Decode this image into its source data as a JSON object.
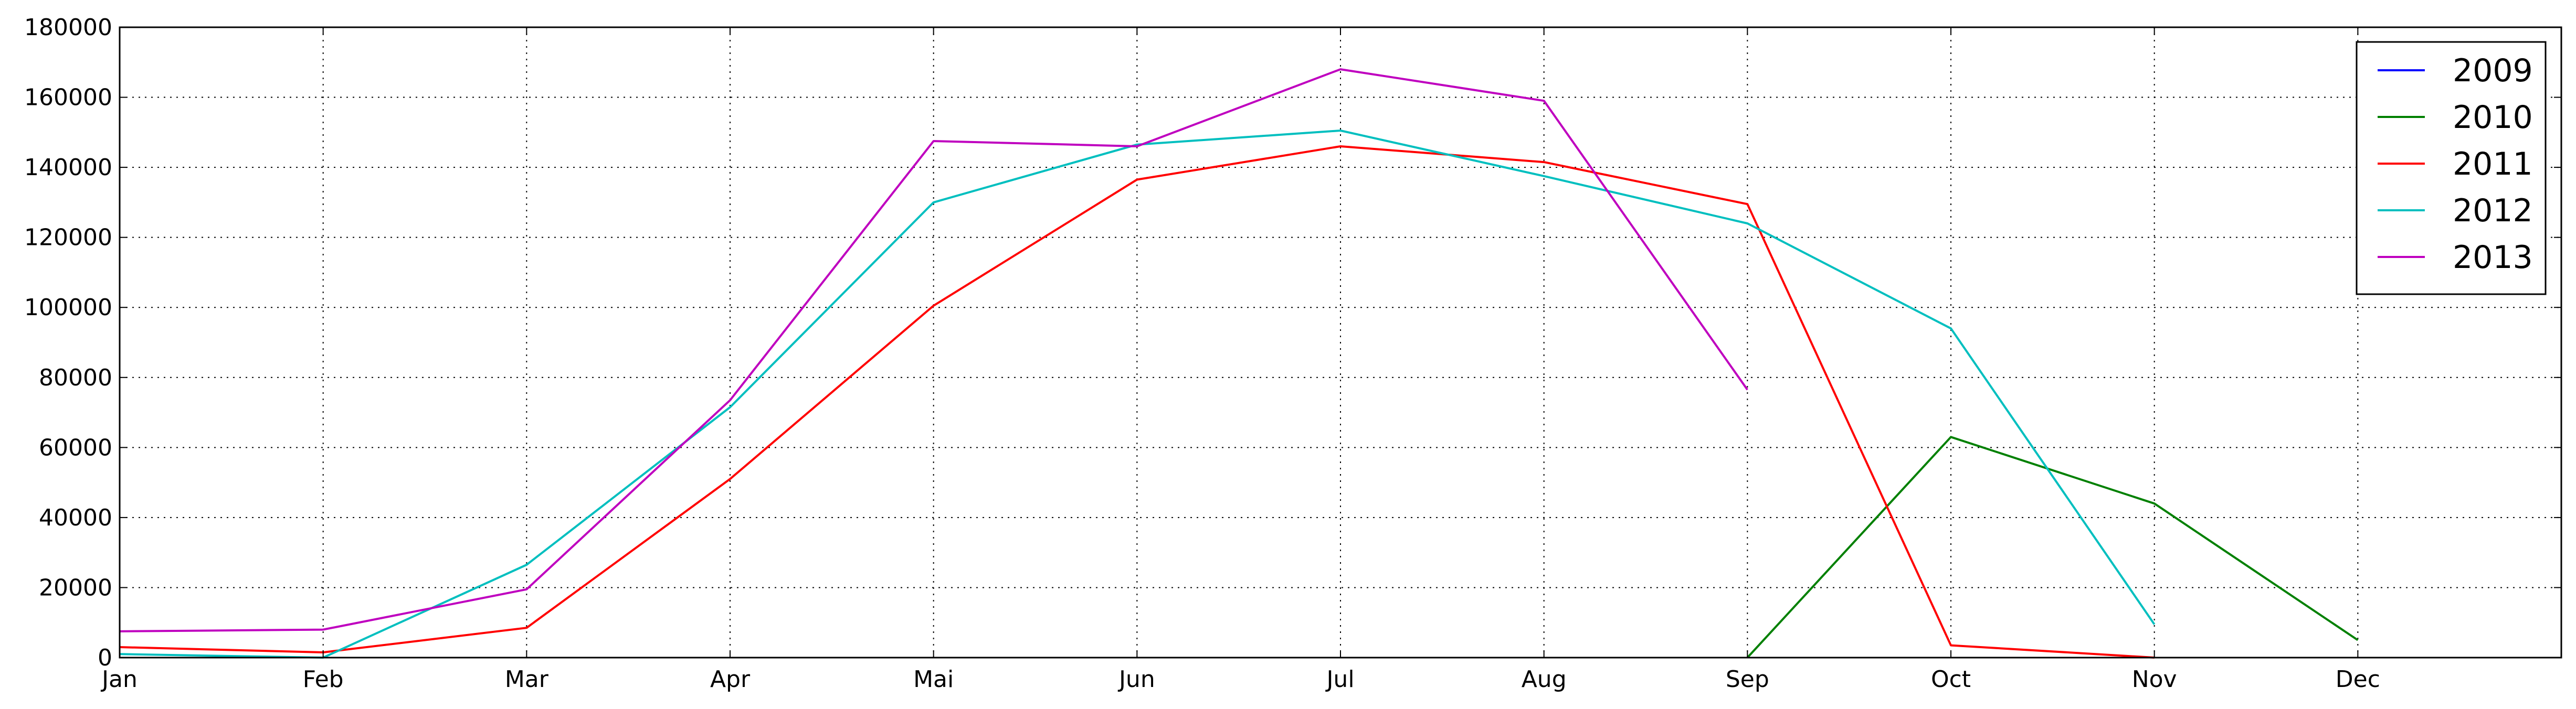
{
  "chart_data": {
    "type": "line",
    "title": "",
    "xlabel": "",
    "ylabel": "",
    "categories": [
      "Jan",
      "Feb",
      "Mar",
      "Apr",
      "Mai",
      "Jun",
      "Jul",
      "Aug",
      "Sep",
      "Oct",
      "Nov",
      "Dec"
    ],
    "x_range": [
      "Jan",
      "Jan (next year)"
    ],
    "ylim": [
      0,
      180000
    ],
    "yticks": [
      "0",
      "20000",
      "40000",
      "60000",
      "80000",
      "100000",
      "120000",
      "140000",
      "160000",
      "180000"
    ],
    "grid": true,
    "legend_position": "top-right",
    "series": [
      {
        "name": "2009",
        "color": "#0000ff",
        "values": [
          null,
          null,
          null,
          null,
          null,
          null,
          null,
          null,
          null,
          null,
          null,
          null
        ]
      },
      {
        "name": "2010",
        "color": "#008000",
        "values": [
          null,
          null,
          null,
          null,
          null,
          null,
          null,
          null,
          0,
          63000,
          44000,
          5000
        ]
      },
      {
        "name": "2011",
        "color": "#ff0000",
        "values": [
          3000,
          1500,
          8500,
          51000,
          100500,
          136500,
          146000,
          141500,
          129500,
          3500,
          0,
          null
        ]
      },
      {
        "name": "2012",
        "color": "#00bfbf",
        "values": [
          1000,
          0,
          26500,
          71500,
          130000,
          146500,
          150500,
          137500,
          124000,
          94000,
          9500,
          null
        ]
      },
      {
        "name": "2013",
        "color": "#bf00bf",
        "values": [
          7500,
          8000,
          19500,
          73500,
          147500,
          146000,
          168000,
          159000,
          76500,
          null,
          null,
          null
        ]
      }
    ]
  }
}
